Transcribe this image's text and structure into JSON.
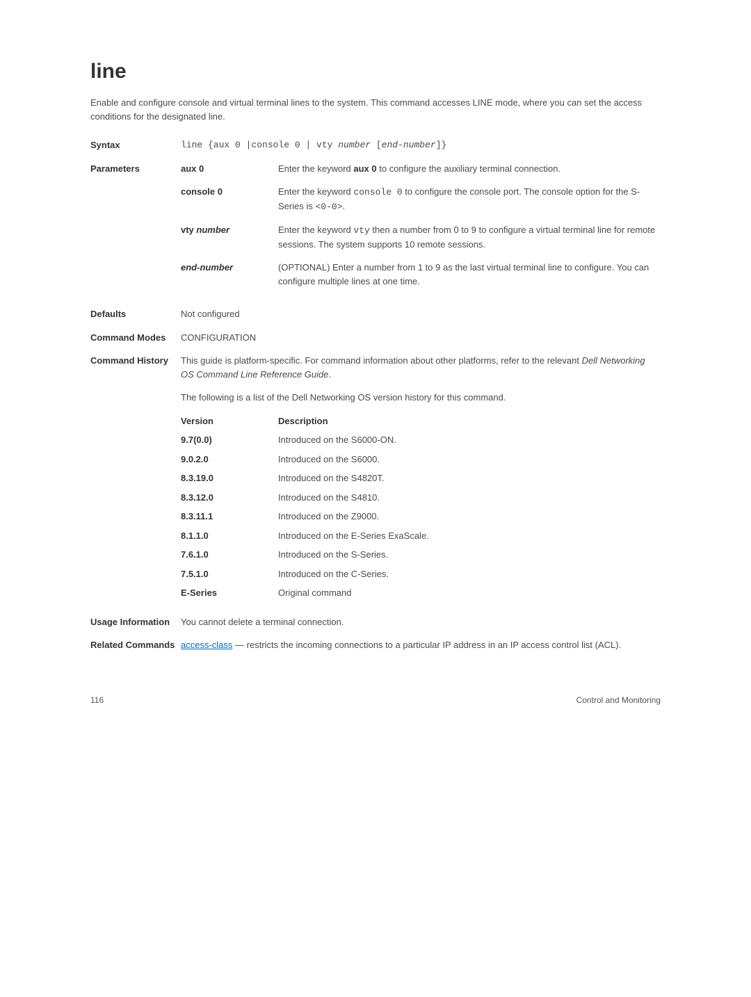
{
  "title": "line",
  "intro": "Enable and configure console and virtual terminal lines to the system. This command accesses LINE mode, where you can set the access conditions for the designated line.",
  "syntax": {
    "label": "Syntax"
  },
  "parameters": {
    "label": "Parameters",
    "items": [
      {
        "name_plain": "aux 0",
        "desc_pre": "Enter the keyword ",
        "desc_bold": "aux 0",
        "desc_post": " to configure the auxiliary terminal connection."
      },
      {
        "name_plain": "console 0",
        "desc_pre": "Enter the keyword ",
        "desc_mono": "console 0",
        "desc_post": " to configure the console port. The console option for the S-Series is ",
        "desc_mono2": "<0-0>",
        "desc_post2": "."
      },
      {
        "name_plain": "vty ",
        "name_italic": "number",
        "desc_pre": "Enter the keyword ",
        "desc_mono": "vty",
        "desc_post": " then a number from 0 to 9 to configure a virtual terminal line for remote sessions. The system supports 10 remote sessions."
      },
      {
        "name_italic": "end-number",
        "desc_full": "(OPTIONAL) Enter a number from 1 to 9 as the last virtual terminal line to configure. You can configure multiple lines at one time."
      }
    ]
  },
  "defaults": {
    "label": "Defaults",
    "value": "Not configured"
  },
  "command_modes": {
    "label": "Command Modes",
    "value": "CONFIGURATION"
  },
  "command_history": {
    "label": "Command History",
    "p1_pre": "This guide is platform-specific. For command information about other platforms, refer to the relevant ",
    "p1_italic": "Dell Networking OS Command Line Reference Guide",
    "p1_post": ".",
    "p2": "The following is a list of the Dell Networking OS version history for this command.",
    "header_version": "Version",
    "header_desc": "Description",
    "versions": [
      {
        "v": "9.7(0.0)",
        "d": "Introduced on the S6000-ON."
      },
      {
        "v": "9.0.2.0",
        "d": "Introduced on the S6000."
      },
      {
        "v": "8.3.19.0",
        "d": "Introduced on the S4820T."
      },
      {
        "v": "8.3.12.0",
        "d": "Introduced on the S4810."
      },
      {
        "v": "8.3.11.1",
        "d": "Introduced on the Z9000."
      },
      {
        "v": "8.1.1.0",
        "d": "Introduced on the E-Series ExaScale."
      },
      {
        "v": "7.6.1.0",
        "d": "Introduced on the S-Series."
      },
      {
        "v": "7.5.1.0",
        "d": "Introduced on the C-Series."
      },
      {
        "v": "E-Series",
        "d": "Original command"
      }
    ]
  },
  "usage": {
    "label": "Usage Information",
    "value": "You cannot delete a terminal connection."
  },
  "related": {
    "label": "Related Commands",
    "link": "access-class",
    "desc": " — restricts the incoming connections to a particular IP address in an IP access control list (ACL)."
  },
  "footer": {
    "page": "116",
    "section": "Control and Monitoring"
  }
}
